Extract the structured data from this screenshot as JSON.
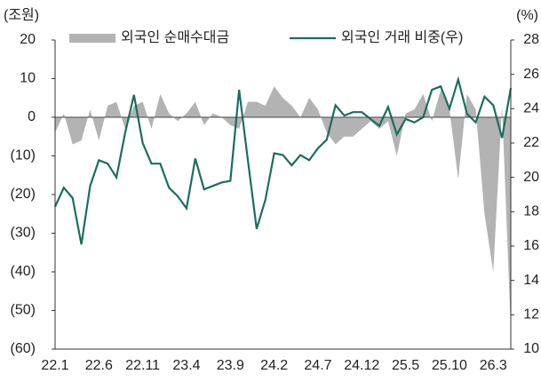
{
  "chart_data": {
    "type": "area_line",
    "y_label": "(조원)",
    "y2_label": "(%)",
    "categories": [
      "22.1",
      null,
      null,
      null,
      null,
      "22.6",
      null,
      null,
      null,
      null,
      "22.11",
      null,
      null,
      null,
      null,
      "23.4",
      null,
      null,
      null,
      null,
      "23.9",
      null,
      null,
      null,
      null,
      "24.2",
      null,
      null,
      null,
      null,
      "24.7",
      null,
      null,
      null,
      null,
      "24.12",
      null,
      null,
      null,
      null,
      "25.5",
      null,
      null,
      null,
      null,
      "25.10",
      null,
      null,
      null,
      null,
      "26.3",
      null,
      null
    ],
    "series": [
      {
        "name": "외국인 순매수대금",
        "type": "area",
        "color": "#b3b3b3",
        "values": [
          -4,
          1,
          -7,
          -6,
          2,
          -6,
          3,
          4,
          -3,
          3,
          4,
          -3,
          6,
          1,
          -1,
          1,
          4,
          -2,
          1,
          0,
          -2,
          -3,
          4,
          4,
          3,
          8,
          5,
          3,
          0,
          5,
          2,
          -4,
          -7,
          -5,
          -5,
          -3,
          -1,
          -3,
          -1,
          -10,
          1,
          2,
          6,
          -1,
          7,
          2,
          -16,
          6,
          2,
          -25,
          -40,
          3,
          -55
        ]
      },
      {
        "name": "외국인 거래 비중(우)",
        "type": "line",
        "axis": "y2",
        "color": "#1b6e5e",
        "values": [
          18.3,
          19.4,
          18.8,
          16.1,
          19.5,
          21.0,
          20.8,
          20.0,
          22.6,
          24.8,
          22.0,
          20.8,
          20.8,
          19.4,
          18.9,
          18.2,
          21.1,
          19.3,
          19.5,
          19.7,
          19.8,
          25.1,
          21.0,
          17.0,
          18.7,
          21.4,
          21.3,
          20.7,
          21.3,
          21.0,
          21.7,
          22.2,
          24.2,
          23.6,
          23.8,
          23.8,
          23.4,
          23.0,
          24.1,
          22.5,
          23.4,
          23.2,
          23.5,
          25.1,
          25.3,
          24.0,
          25.7,
          23.7,
          23.2,
          24.7,
          24.2,
          22.3,
          25.2
        ]
      }
    ],
    "ylim": [
      -60,
      20
    ],
    "yticks": [
      20,
      10,
      0,
      {
        "value": -10,
        "label": "(10)"
      },
      {
        "value": -20,
        "label": "(20)"
      },
      {
        "value": -30,
        "label": "(30)"
      },
      {
        "value": -40,
        "label": "(40)"
      },
      {
        "value": -50,
        "label": "(50)"
      },
      {
        "value": -60,
        "label": "(60)"
      }
    ],
    "y2lim": [
      10,
      28
    ],
    "y2ticks": [
      28,
      26,
      24,
      22,
      20,
      18,
      16,
      14,
      12,
      10
    ]
  }
}
